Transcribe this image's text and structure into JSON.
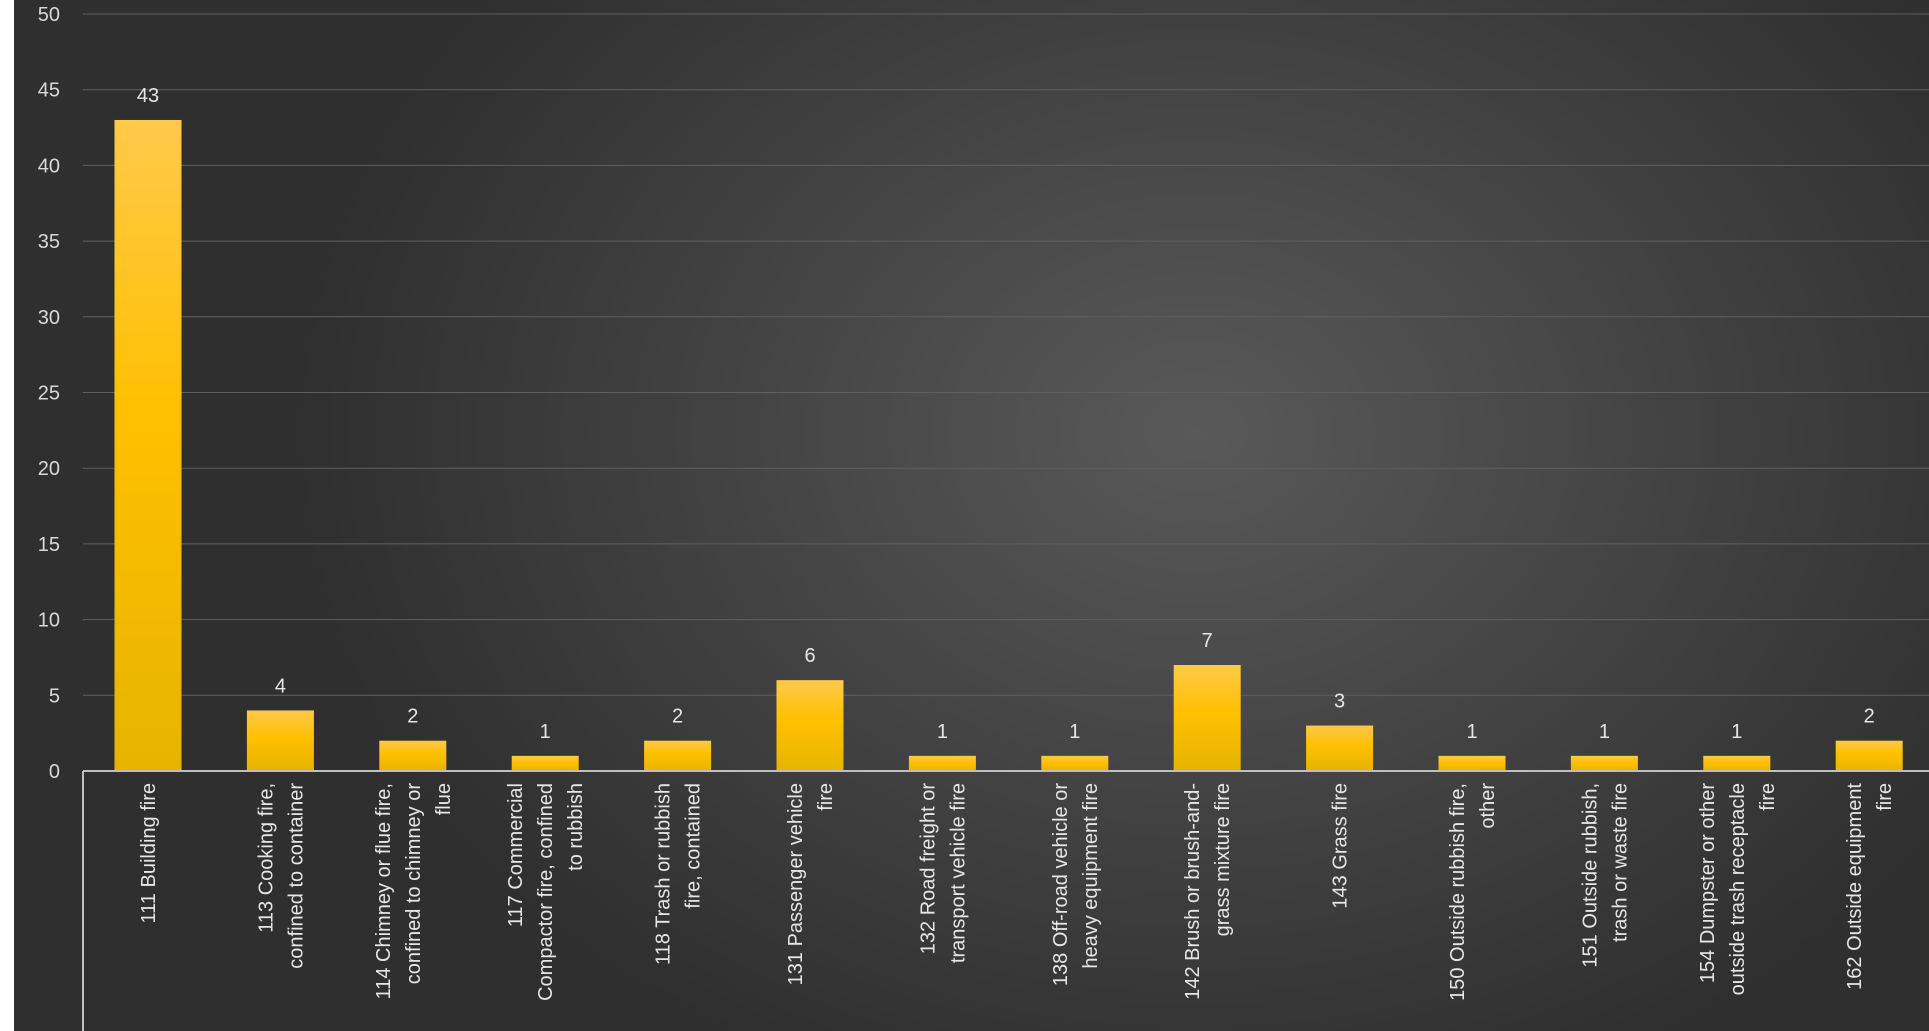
{
  "chart_data": {
    "type": "bar",
    "title": "",
    "xlabel": "",
    "ylabel": "",
    "ylim": [
      0,
      50
    ],
    "yticks": [
      0,
      5,
      10,
      15,
      20,
      25,
      30,
      35,
      40,
      45,
      50
    ],
    "grid": true,
    "legend": "none",
    "bar_color": "#ffc000",
    "categories": [
      [
        "111 Building fire"
      ],
      [
        "113 Cooking fire,",
        "confined to container"
      ],
      [
        "114 Chimney or flue fire,",
        "confined to chimney or",
        "flue"
      ],
      [
        "117 Commercial",
        "Compactor fire, confined",
        "to rubbish"
      ],
      [
        "118 Trash or rubbish",
        "fire, contained"
      ],
      [
        "131 Passenger vehicle",
        "fire"
      ],
      [
        "132 Road freight or",
        "transport vehicle fire"
      ],
      [
        "138 Off-road vehicle or",
        "heavy equipment fire"
      ],
      [
        "142 Brush or brush-and-",
        "grass mixture fire"
      ],
      [
        "143 Grass fire"
      ],
      [
        "150 Outside rubbish fire,",
        "other"
      ],
      [
        "151 Outside rubbish,",
        "trash or waste fire"
      ],
      [
        "154 Dumpster or other",
        "outside trash receptacle",
        "fire"
      ],
      [
        "162 Outside equipment",
        "fire"
      ]
    ],
    "values": [
      43,
      4,
      2,
      1,
      2,
      6,
      1,
      1,
      7,
      3,
      1,
      1,
      1,
      2
    ]
  }
}
